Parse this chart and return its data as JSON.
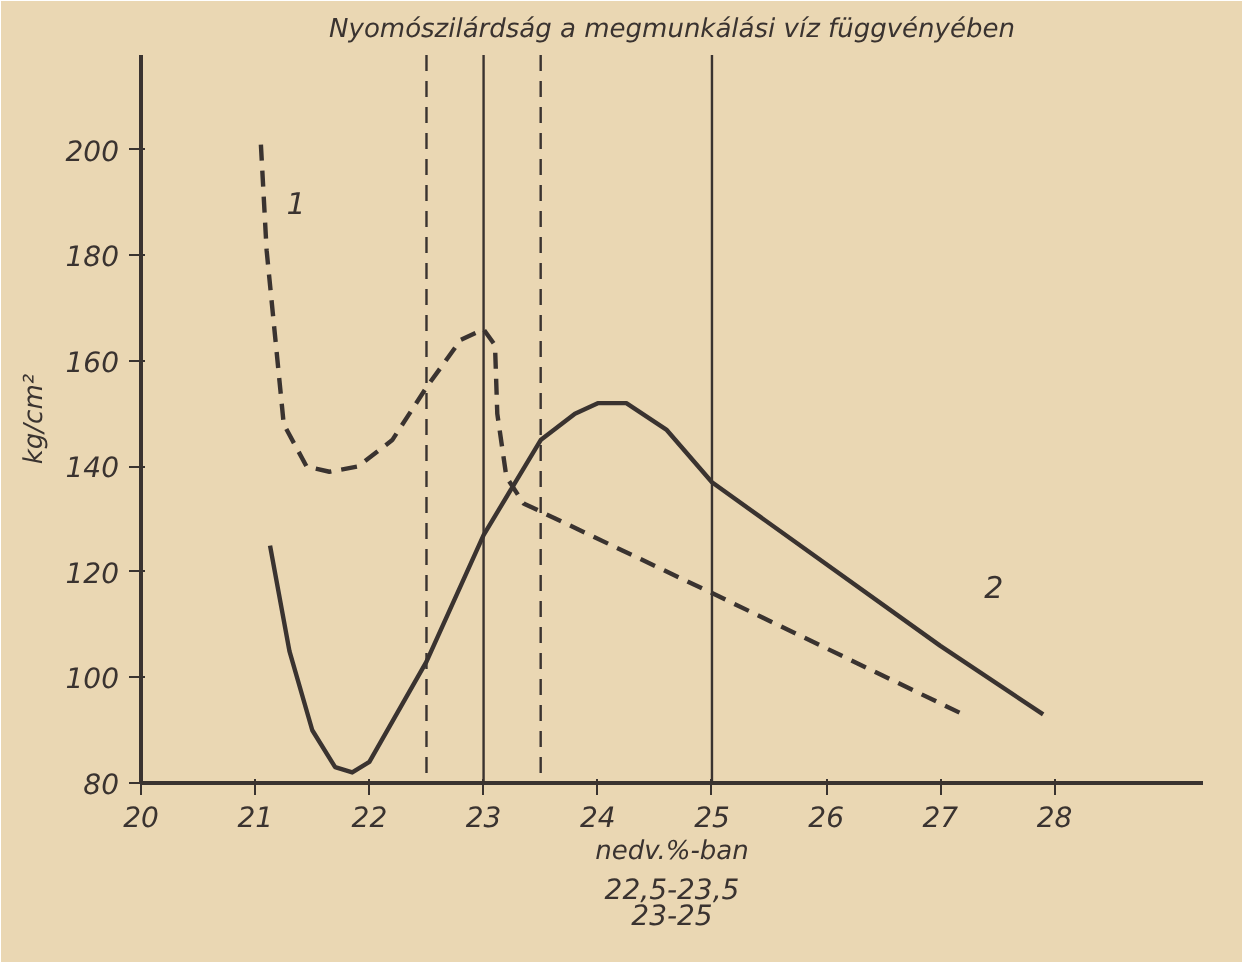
{
  "chart_data": {
    "type": "line",
    "title": "Nyomószilárdság a megmunkálási víz függvényében",
    "xlabel": "nedv.%-ban",
    "ylabel": "kg/cm²",
    "xlim": [
      20,
      29.3
    ],
    "ylim": [
      80,
      218
    ],
    "xticks": [
      20,
      21,
      22,
      23,
      24,
      25,
      26,
      27,
      28
    ],
    "yticks": [
      80,
      100,
      120,
      140,
      160,
      180,
      200
    ],
    "grid": false,
    "series": [
      {
        "name": "1",
        "color": "#3a3330",
        "line_style": "dashed",
        "x": [
          21.05,
          21.1,
          21.25,
          21.45,
          21.65,
          21.9,
          22.2,
          22.5,
          22.8,
          23.0,
          23.1,
          23.12,
          23.2,
          23.35,
          25,
          27.2
        ],
        "values": [
          201,
          181,
          148,
          140,
          139,
          140,
          145,
          155,
          164,
          166,
          163,
          150,
          138,
          133,
          116,
          93
        ]
      },
      {
        "name": "2",
        "color": "#3a3330",
        "line_style": "solid",
        "x": [
          21.13,
          21.3,
          21.5,
          21.7,
          21.85,
          22.0,
          22.5,
          23.0,
          23.5,
          23.8,
          24.0,
          24.25,
          24.6,
          25,
          27,
          27.9
        ],
        "values": [
          125,
          105,
          90,
          83,
          82,
          84,
          103,
          127,
          145,
          150,
          152,
          152,
          147,
          137,
          106,
          93
        ]
      }
    ],
    "ref_lines": [
      {
        "axis": "x",
        "value": 22.5,
        "label": null,
        "line_style": "dashed"
      },
      {
        "axis": "x",
        "value": 23,
        "label": null,
        "line_style": "solid"
      },
      {
        "axis": "x",
        "value": 23.5,
        "label": null,
        "line_style": "dashed"
      },
      {
        "axis": "x",
        "value": 25,
        "label": null,
        "line_style": "solid"
      }
    ],
    "annotations": [
      "22,5-23,5",
      "23-25"
    ]
  }
}
